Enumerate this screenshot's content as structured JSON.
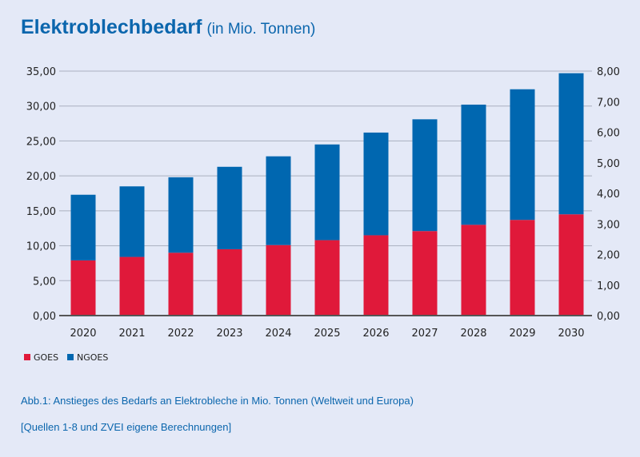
{
  "header": {
    "title": "Elektroblechbedarf",
    "unit": "(in Mio. Tonnen)"
  },
  "chart_data": {
    "type": "bar",
    "stacked": true,
    "categories": [
      "2020",
      "2021",
      "2022",
      "2023",
      "2024",
      "2025",
      "2026",
      "2027",
      "2028",
      "2029",
      "2030"
    ],
    "series": [
      {
        "name": "GOES",
        "color": "#e0193a",
        "values": [
          7.9,
          8.4,
          9.0,
          9.5,
          10.1,
          10.8,
          11.5,
          12.1,
          13.0,
          13.7,
          14.5
        ]
      },
      {
        "name": "NGOES",
        "color": "#0067b0",
        "values": [
          9.4,
          10.1,
          10.8,
          11.8,
          12.7,
          13.7,
          14.7,
          16.0,
          17.2,
          18.7,
          20.2
        ]
      }
    ],
    "ylim": [
      0,
      35
    ],
    "yticks": [
      "0,00",
      "5,00",
      "10,00",
      "15,00",
      "20,00",
      "25,00",
      "30,00",
      "35,00"
    ],
    "y2lim": [
      0,
      8
    ],
    "y2ticks": [
      "0,00",
      "1,00",
      "2,00",
      "3,00",
      "4,00",
      "5,00",
      "6,00",
      "7,00",
      "8,00"
    ],
    "grid": true,
    "legend": "bottom-left"
  },
  "captions": {
    "figure": "Abb.1: Anstieges des Bedarfs an Elektrobleche in Mio. Tonnen (Weltweit und Europa)",
    "source": "[Quellen 1-8 und ZVEI eigene Berechnungen]"
  }
}
